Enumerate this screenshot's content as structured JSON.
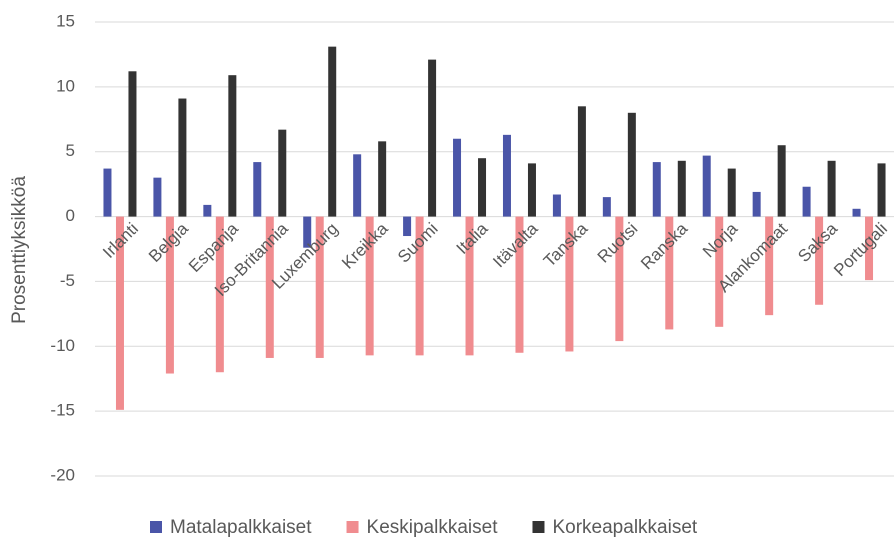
{
  "chart_data": {
    "type": "bar",
    "y_label": "Prosenttiyksikköä",
    "categories": [
      "Irlanti",
      "Belgia",
      "Espanja",
      "Iso-Britannia",
      "Luxemburg",
      "Kreikka",
      "Suomi",
      "Italia",
      "Itävalta",
      "Tanska",
      "Ruotsi",
      "Ranska",
      "Norja",
      "Alankomaat",
      "Saksa",
      "Portugali"
    ],
    "series": [
      {
        "name": "Matalapalkkaiset",
        "color": "#4a55a8",
        "values": [
          3.7,
          3.0,
          0.9,
          4.2,
          -2.4,
          4.8,
          -1.5,
          6.0,
          6.3,
          1.7,
          1.5,
          4.2,
          4.7,
          1.9,
          2.3,
          0.6
        ]
      },
      {
        "name": "Keskipalkkaiset",
        "color": "#f08c8f",
        "values": [
          -14.9,
          -12.1,
          -12.0,
          -10.9,
          -10.9,
          -10.7,
          -10.7,
          -10.7,
          -10.5,
          -10.4,
          -9.6,
          -8.7,
          -8.5,
          -7.6,
          -6.8,
          -4.9
        ]
      },
      {
        "name": "Korkeapalkkaiset",
        "color": "#333333",
        "values": [
          11.2,
          9.1,
          10.9,
          6.7,
          13.1,
          5.8,
          12.1,
          4.5,
          4.1,
          8.5,
          8.0,
          4.3,
          3.7,
          5.5,
          4.3,
          4.1
        ]
      }
    ],
    "ylim": [
      -20,
      15
    ],
    "yticks": [
      -20,
      -15,
      -10,
      -5,
      0,
      5,
      10,
      15
    ],
    "grid": true,
    "legend": "bottom"
  }
}
